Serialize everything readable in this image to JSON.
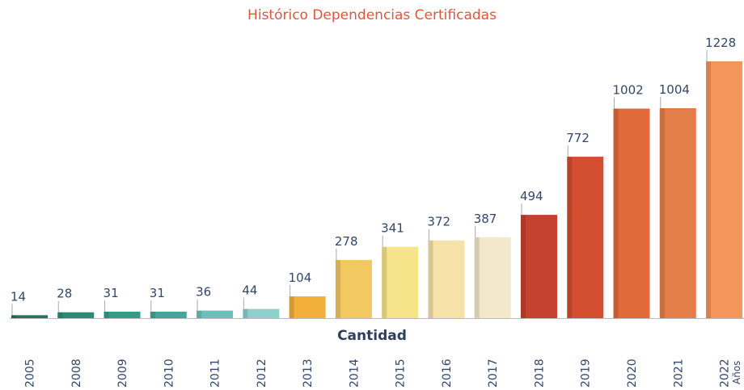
{
  "chart_data": {
    "type": "bar",
    "title": "Histórico Dependencias Certificadas",
    "x_label": "Cantidad",
    "x_axis_label": "Años",
    "categories": [
      "2005",
      "2008",
      "2009",
      "2010",
      "2011",
      "2012",
      "2013",
      "2014",
      "2015",
      "2016",
      "2017",
      "2018",
      "2019",
      "2020",
      "2021",
      "2022"
    ],
    "values": [
      14,
      28,
      31,
      31,
      36,
      44,
      104,
      278,
      341,
      372,
      387,
      494,
      772,
      1002,
      1004,
      1228
    ],
    "colors": [
      "#2a6e5e",
      "#2e8a74",
      "#3a9a88",
      "#4aa39a",
      "#6cc0b8",
      "#8fd0cc",
      "#f2b03a",
      "#f2c860",
      "#f5e48a",
      "#f5e2a8",
      "#f3e8cc",
      "#c4402f",
      "#d44e30",
      "#e06a3a",
      "#e47e48",
      "#f4955a"
    ]
  }
}
